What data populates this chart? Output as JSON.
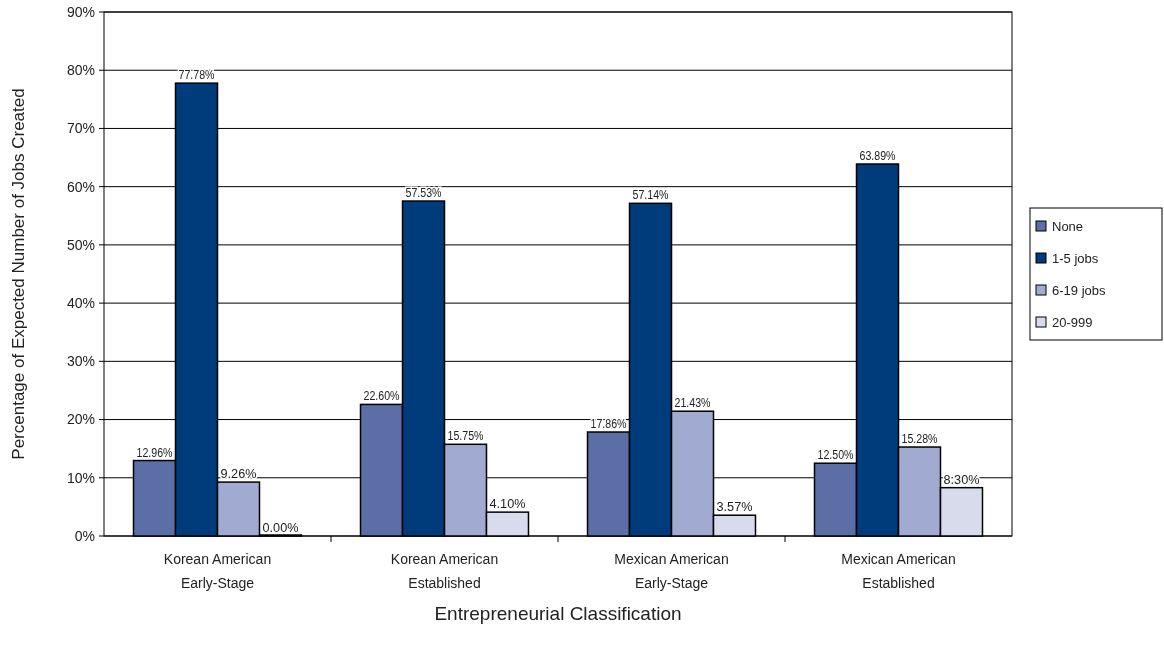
{
  "chart_data": {
    "type": "bar",
    "xlabel": "Entrepreneurial Classification",
    "ylabel": "Percentage of Expected Number of Jobs Created",
    "categories": [
      "Korean American\nEarly-Stage",
      "Korean American\nEstablished",
      "Mexican American\nEarly-Stage",
      "Mexican American\nEstablished"
    ],
    "series": [
      {
        "name": "None",
        "color": "#5b6ea6",
        "values": [
          12.96,
          22.6,
          17.86,
          12.5
        ],
        "value_labels": [
          "12.96%",
          "22.60%",
          "17.86%",
          "12.50%"
        ]
      },
      {
        "name": "1-5 jobs",
        "color": "#003b7b",
        "values": [
          77.78,
          57.53,
          57.14,
          63.89
        ],
        "value_labels": [
          "77.78%",
          "57.53%",
          "57.14%",
          "63.89%"
        ]
      },
      {
        "name": "6-19 jobs",
        "color": "#a1abd1",
        "values": [
          9.26,
          15.75,
          21.43,
          15.28
        ],
        "value_labels": [
          "9.26%",
          "15.75%",
          "21.43%",
          "15.28%"
        ]
      },
      {
        "name": "20-999",
        "color": "#d7dbec",
        "values": [
          0.0,
          4.1,
          3.57,
          8.3
        ],
        "value_labels": [
          "0.00%",
          "4.10%",
          "3.57%",
          "8.30%"
        ]
      }
    ],
    "ylim": [
      0,
      90
    ],
    "yticks": [
      {
        "value": 0,
        "label": "0%"
      },
      {
        "value": 10,
        "label": "10%"
      },
      {
        "value": 20,
        "label": "20%"
      },
      {
        "value": 30,
        "label": "30%"
      },
      {
        "value": 40,
        "label": "40%"
      },
      {
        "value": 50,
        "label": "50%"
      },
      {
        "value": 60,
        "label": "60%"
      },
      {
        "value": 70,
        "label": "70%"
      },
      {
        "value": 80,
        "label": "80%"
      },
      {
        "value": 90,
        "label": "90%"
      }
    ],
    "grid": "y",
    "legend": "right"
  }
}
